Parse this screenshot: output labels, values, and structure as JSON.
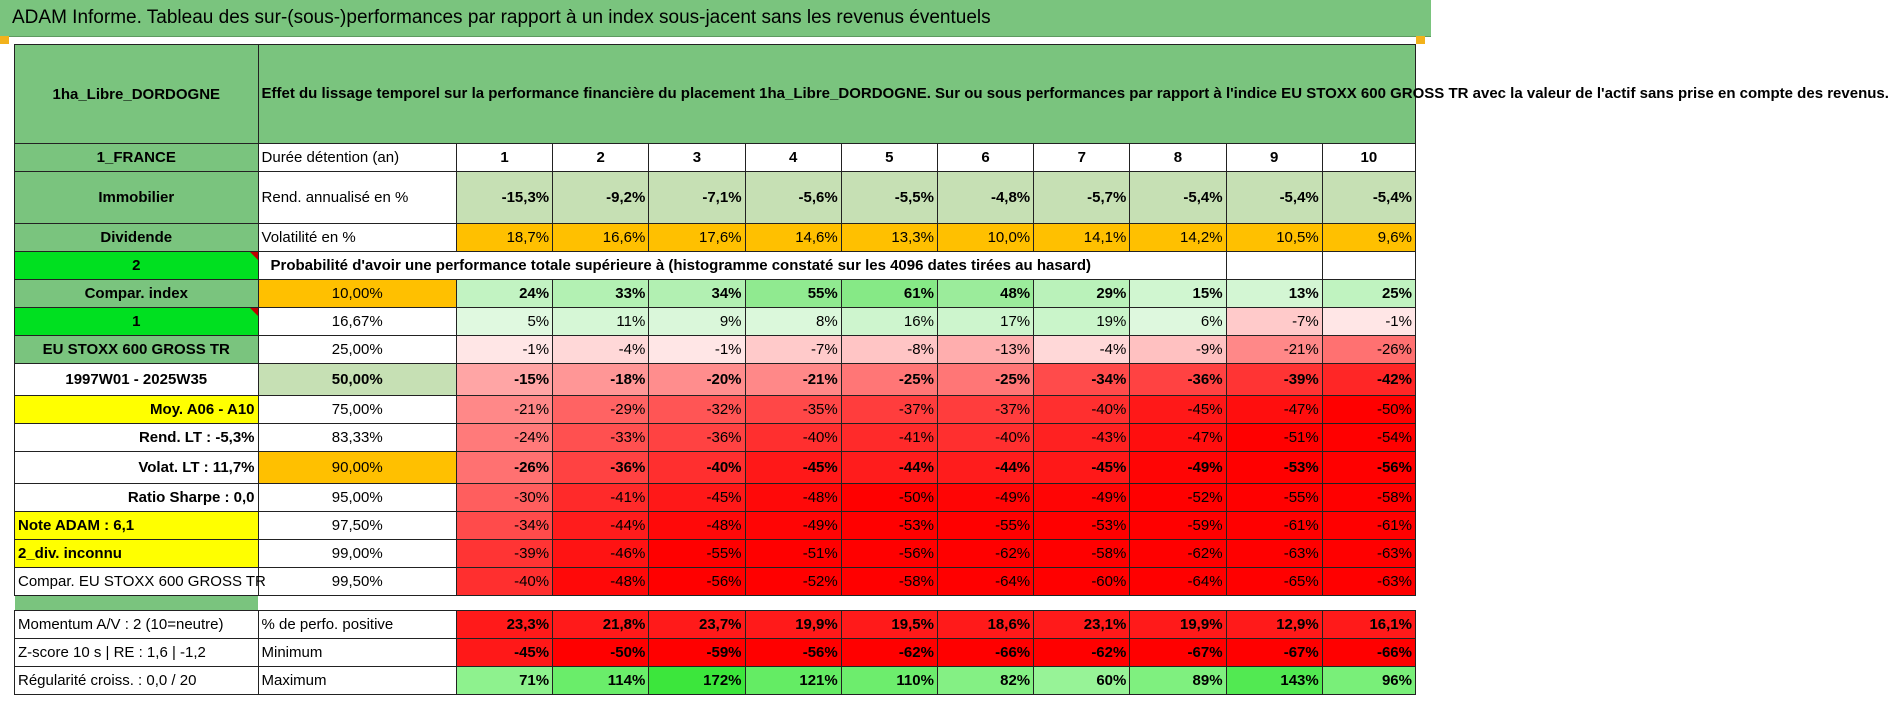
{
  "title": "ADAM Informe. Tableau des sur-(sous-)performances par rapport à un index sous-jacent sans les revenus éventuels",
  "header": {
    "name": "1ha_Libre_DORDOGNE",
    "description": "Effet du lissage temporel sur la performance financière du placement 1ha_Libre_DORDOGNE. Sur ou sous performances par rapport à l'indice EU STOXX 600 GROSS TR avec la valeur de l'actif sans prise en compte des revenus."
  },
  "colors": {
    "green_header": "#7ac47e",
    "yellow": "#ffff00",
    "orange": "#ffc000",
    "lime": "#00e020",
    "red_text": "#e60000"
  },
  "years_row": {
    "left": "1_FRANCE",
    "label": "Durée détention (an)",
    "years": [
      "1",
      "2",
      "3",
      "4",
      "5",
      "6",
      "7",
      "8",
      "9",
      "10"
    ]
  },
  "rend_row": {
    "left": "Immobilier",
    "label": "Rend. annualisé en %",
    "values": [
      "-15,3%",
      "-9,2%",
      "-7,1%",
      "-5,6%",
      "-5,5%",
      "-4,8%",
      "-5,7%",
      "-5,4%",
      "-5,4%",
      "-5,4%"
    ]
  },
  "vol_row": {
    "left": "Dividende",
    "label": "Volatilité en %",
    "values": [
      "18,7%",
      "16,6%",
      "17,6%",
      "14,6%",
      "13,3%",
      "10,0%",
      "14,1%",
      "14,2%",
      "10,5%",
      "9,6%"
    ]
  },
  "prob_header": {
    "left": "2",
    "text": "Probabilité d'avoir une performance totale supérieure à (histogramme constaté sur les 4096 dates tirées au hasard)"
  },
  "prob_rows": [
    {
      "left": "Compar. index",
      "pct": "10,00%",
      "values": [
        "24%",
        "33%",
        "34%",
        "55%",
        "61%",
        "48%",
        "29%",
        "15%",
        "13%",
        "25%"
      ],
      "nums": [
        24,
        33,
        34,
        55,
        61,
        48,
        29,
        15,
        13,
        25
      ]
    },
    {
      "left": "1",
      "pct": "16,67%",
      "values": [
        "5%",
        "11%",
        "9%",
        "8%",
        "16%",
        "17%",
        "19%",
        "6%",
        "-7%",
        "-1%"
      ],
      "nums": [
        5,
        11,
        9,
        8,
        16,
        17,
        19,
        6,
        -7,
        -1
      ]
    },
    {
      "left": "EU STOXX 600 GROSS TR",
      "pct": "25,00%",
      "values": [
        "-1%",
        "-4%",
        "-1%",
        "-7%",
        "-8%",
        "-13%",
        "-4%",
        "-9%",
        "-21%",
        "-26%"
      ],
      "nums": [
        -1,
        -4,
        -1,
        -7,
        -8,
        -13,
        -4,
        -9,
        -21,
        -26
      ]
    },
    {
      "left": "1997W01 - 2025W35",
      "pct": "50,00%",
      "values": [
        "-15%",
        "-18%",
        "-20%",
        "-21%",
        "-25%",
        "-25%",
        "-34%",
        "-36%",
        "-39%",
        "-42%"
      ],
      "nums": [
        -15,
        -18,
        -20,
        -21,
        -25,
        -25,
        -34,
        -36,
        -39,
        -42
      ]
    },
    {
      "left": "Moy. A06 - A10",
      "pct": "75,00%",
      "values": [
        "-21%",
        "-29%",
        "-32%",
        "-35%",
        "-37%",
        "-37%",
        "-40%",
        "-45%",
        "-47%",
        "-50%"
      ],
      "nums": [
        -21,
        -29,
        -32,
        -35,
        -37,
        -37,
        -40,
        -45,
        -47,
        -50
      ]
    },
    {
      "left": "Rend. LT :   -5,3%",
      "pct": "83,33%",
      "values": [
        "-24%",
        "-33%",
        "-36%",
        "-40%",
        "-41%",
        "-40%",
        "-43%",
        "-47%",
        "-51%",
        "-54%"
      ],
      "nums": [
        -24,
        -33,
        -36,
        -40,
        -41,
        -40,
        -43,
        -47,
        -51,
        -54
      ]
    },
    {
      "left": "Volat. LT :   11,7%",
      "pct": "90,00%",
      "values": [
        "-26%",
        "-36%",
        "-40%",
        "-45%",
        "-44%",
        "-44%",
        "-45%",
        "-49%",
        "-53%",
        "-56%"
      ],
      "nums": [
        -26,
        -36,
        -40,
        -45,
        -44,
        -44,
        -45,
        -49,
        -53,
        -56
      ]
    },
    {
      "left": "Ratio Sharpe :    0,0",
      "pct": "95,00%",
      "values": [
        "-30%",
        "-41%",
        "-45%",
        "-48%",
        "-50%",
        "-49%",
        "-49%",
        "-52%",
        "-55%",
        "-58%"
      ],
      "nums": [
        -30,
        -41,
        -45,
        -48,
        -50,
        -49,
        -49,
        -52,
        -55,
        -58
      ]
    },
    {
      "left": "Note ADAM : 6,1",
      "pct": "97,50%",
      "values": [
        "-34%",
        "-44%",
        "-48%",
        "-49%",
        "-53%",
        "-55%",
        "-53%",
        "-59%",
        "-61%",
        "-61%"
      ],
      "nums": [
        -34,
        -44,
        -48,
        -49,
        -53,
        -55,
        -53,
        -59,
        -61,
        -61
      ]
    },
    {
      "left": "2_div. inconnu",
      "pct": "99,00%",
      "values": [
        "-39%",
        "-46%",
        "-55%",
        "-51%",
        "-56%",
        "-62%",
        "-58%",
        "-62%",
        "-63%",
        "-63%"
      ],
      "nums": [
        -39,
        -46,
        -55,
        -51,
        -56,
        -62,
        -58,
        -62,
        -63,
        -63
      ]
    },
    {
      "left": "Compar. EU STOXX 600 GROSS TR",
      "pct": "99,50%",
      "values": [
        "-40%",
        "-48%",
        "-56%",
        "-52%",
        "-58%",
        "-64%",
        "-60%",
        "-64%",
        "-65%",
        "-63%"
      ],
      "nums": [
        -40,
        -48,
        -56,
        -52,
        -58,
        -64,
        -60,
        -64,
        -65,
        -63
      ]
    }
  ],
  "bottom_rows": [
    {
      "left": "Momentum A/V : 2 (10=neutre)",
      "label": "% de perfo. positive",
      "values": [
        "23,3%",
        "21,8%",
        "23,7%",
        "19,9%",
        "19,5%",
        "18,6%",
        "23,1%",
        "19,9%",
        "12,9%",
        "16,1%"
      ]
    },
    {
      "left": "Z-score 10 s | RE : 1,6 | -1,2",
      "label": "Minimum",
      "values": [
        "-45%",
        "-50%",
        "-59%",
        "-56%",
        "-62%",
        "-66%",
        "-62%",
        "-67%",
        "-67%",
        "-66%"
      ],
      "nums": [
        -45,
        -50,
        -59,
        -56,
        -62,
        -66,
        -62,
        -67,
        -67,
        -66
      ]
    },
    {
      "left": "Régularité croiss. : 0,0 / 20",
      "label": "Maximum",
      "values": [
        "71%",
        "114%",
        "172%",
        "121%",
        "110%",
        "82%",
        "60%",
        "89%",
        "143%",
        "96%"
      ],
      "nums": [
        71,
        114,
        172,
        121,
        110,
        82,
        60,
        89,
        143,
        96
      ]
    }
  ]
}
